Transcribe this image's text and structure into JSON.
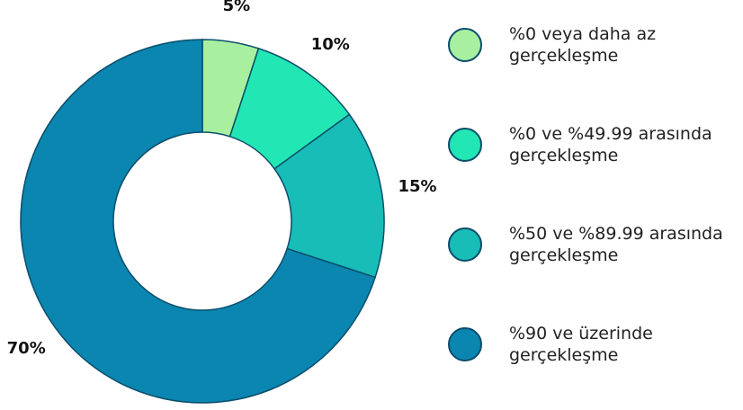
{
  "chart_data": {
    "type": "donut",
    "categories": [
      "%0 veya daha az\ngerçekleşme",
      "%0 ve %49.99 arasında\ngerçekleşme",
      "%50 ve %89.99 arasında\ngerçekleşme",
      "%90 ve üzerinde\ngerçekleşme"
    ],
    "values": [
      5,
      10,
      15,
      70
    ],
    "value_labels": [
      "5%",
      "10%",
      "15%",
      "70%"
    ],
    "colors": [
      "#a8f0a0",
      "#22e6b4",
      "#17bdb6",
      "#0a86b0"
    ],
    "legend": "right"
  }
}
